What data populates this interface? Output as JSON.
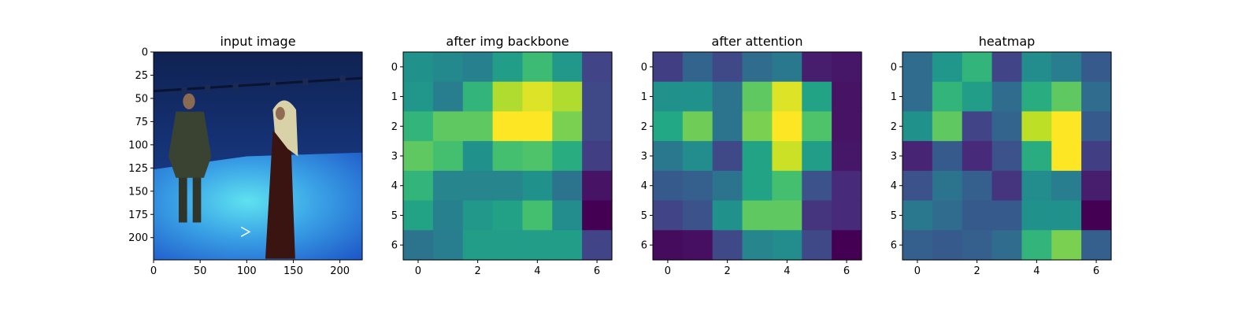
{
  "chart_data": [
    {
      "type": "image",
      "title": "input image",
      "content": "photo of a man in a dark suit and a woman in a long dark robe with a white headscarf standing in a blue studio",
      "xlim": [
        0,
        224
      ],
      "ylim": [
        224,
        0
      ],
      "xticks": [
        0,
        50,
        100,
        150,
        200
      ],
      "yticks": [
        0,
        25,
        50,
        75,
        100,
        125,
        150,
        175,
        200
      ],
      "xtick_labels": [
        "0",
        "50",
        "100",
        "150",
        "200"
      ],
      "ytick_labels": [
        "0",
        "25",
        "50",
        "75",
        "100",
        "125",
        "150",
        "175",
        "200"
      ]
    },
    {
      "type": "heatmap",
      "title": "after img backbone",
      "colormap": "viridis",
      "xticks": [
        0,
        2,
        4,
        6
      ],
      "yticks": [
        0,
        1,
        2,
        3,
        4,
        5,
        6
      ],
      "xtick_labels": [
        "0",
        "2",
        "4",
        "6"
      ],
      "ytick_labels": [
        "0",
        "1",
        "2",
        "3",
        "4",
        "5",
        "6"
      ],
      "values": [
        [
          0.5,
          0.47,
          0.43,
          0.55,
          0.68,
          0.53,
          0.2
        ],
        [
          0.52,
          0.42,
          0.65,
          0.88,
          0.95,
          0.88,
          0.22
        ],
        [
          0.65,
          0.75,
          0.75,
          1.0,
          1.0,
          0.8,
          0.22
        ],
        [
          0.75,
          0.7,
          0.5,
          0.7,
          0.72,
          0.62,
          0.18
        ],
        [
          0.65,
          0.45,
          0.45,
          0.45,
          0.5,
          0.38,
          0.05
        ],
        [
          0.58,
          0.43,
          0.53,
          0.57,
          0.7,
          0.48,
          0.0
        ],
        [
          0.38,
          0.42,
          0.55,
          0.55,
          0.55,
          0.55,
          0.2
        ]
      ]
    },
    {
      "type": "heatmap",
      "title": "after attention",
      "colormap": "viridis",
      "xticks": [
        0,
        2,
        4,
        6
      ],
      "yticks": [
        0,
        1,
        2,
        3,
        4,
        5,
        6
      ],
      "xtick_labels": [
        "0",
        "2",
        "4",
        "6"
      ],
      "ytick_labels": [
        "0",
        "1",
        "2",
        "3",
        "4",
        "5",
        "6"
      ],
      "values": [
        [
          0.18,
          0.32,
          0.22,
          0.35,
          0.4,
          0.08,
          0.06
        ],
        [
          0.5,
          0.5,
          0.38,
          0.75,
          0.95,
          0.58,
          0.05
        ],
        [
          0.6,
          0.78,
          0.38,
          0.8,
          1.0,
          0.72,
          0.05
        ],
        [
          0.4,
          0.48,
          0.22,
          0.58,
          0.92,
          0.55,
          0.06
        ],
        [
          0.28,
          0.3,
          0.38,
          0.58,
          0.7,
          0.25,
          0.12
        ],
        [
          0.2,
          0.25,
          0.5,
          0.75,
          0.75,
          0.15,
          0.12
        ],
        [
          0.03,
          0.04,
          0.22,
          0.45,
          0.48,
          0.22,
          0.0
        ]
      ]
    },
    {
      "type": "heatmap",
      "title": "heatmap",
      "colormap": "viridis",
      "xticks": [
        0,
        2,
        4,
        6
      ],
      "yticks": [
        0,
        1,
        2,
        3,
        4,
        5,
        6
      ],
      "xtick_labels": [
        "0",
        "2",
        "4",
        "6"
      ],
      "ytick_labels": [
        "0",
        "1",
        "2",
        "3",
        "4",
        "5",
        "6"
      ],
      "values": [
        [
          0.35,
          0.52,
          0.65,
          0.2,
          0.48,
          0.42,
          0.28
        ],
        [
          0.35,
          0.65,
          0.55,
          0.35,
          0.62,
          0.75,
          0.35
        ],
        [
          0.5,
          0.75,
          0.2,
          0.32,
          0.9,
          1.0,
          0.28
        ],
        [
          0.1,
          0.28,
          0.12,
          0.25,
          0.62,
          1.0,
          0.18
        ],
        [
          0.25,
          0.38,
          0.3,
          0.15,
          0.48,
          0.42,
          0.08
        ],
        [
          0.4,
          0.35,
          0.28,
          0.28,
          0.5,
          0.5,
          0.0
        ],
        [
          0.3,
          0.28,
          0.3,
          0.35,
          0.65,
          0.8,
          0.3
        ]
      ]
    }
  ]
}
